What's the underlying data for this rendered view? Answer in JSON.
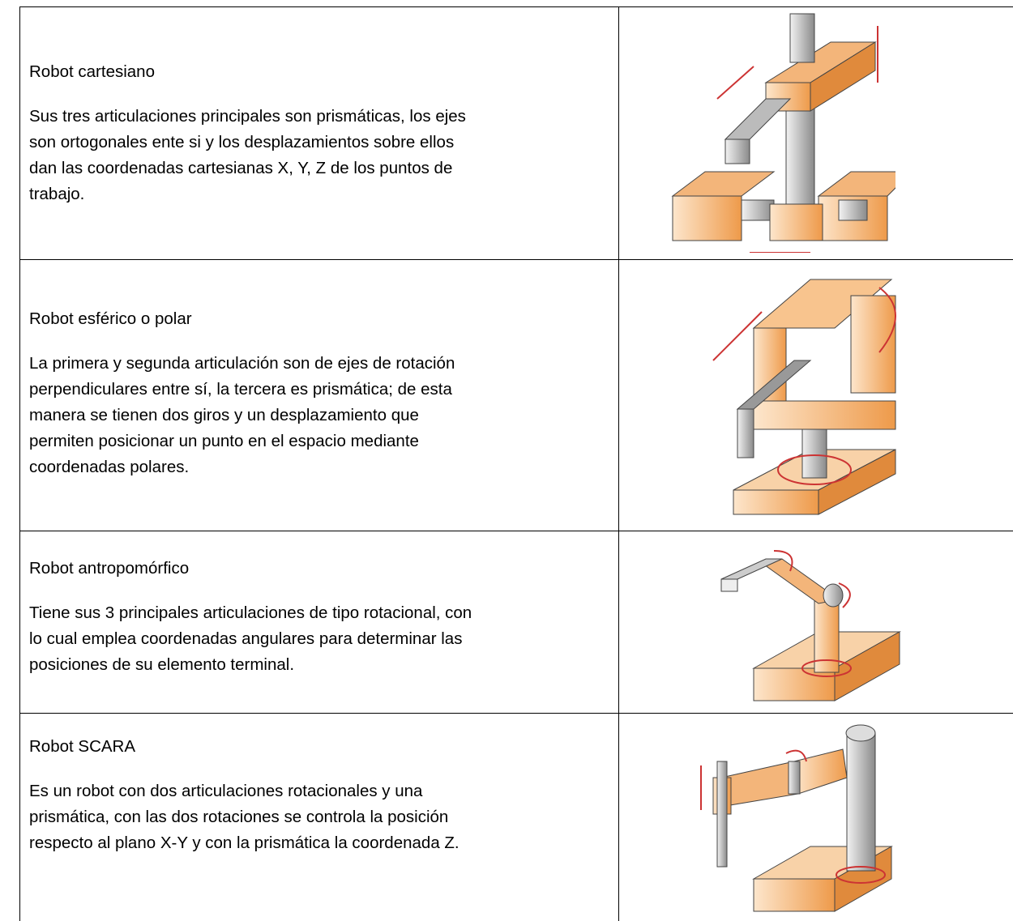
{
  "table": {
    "rows": [
      {
        "title": "Robot cartesiano",
        "lines": [
          "Sus tres articulaciones principales son prismáticas, los ejes",
          "son ortogonales ente si y los desplazamientos sobre ellos",
          "dan las coordenadas cartesianas X, Y, Z de los puntos de",
          "trabajo."
        ]
      },
      {
        "title": "Robot esférico o polar",
        "lines": [
          "La primera y segunda articulación son de ejes de rotación",
          "perpendiculares entre sí, la tercera es prismática; de esta",
          "manera se tienen dos giros y un desplazamiento que",
          "permiten posicionar un punto en el espacio mediante",
          "coordenadas polares."
        ]
      },
      {
        "title": "Robot antropomórfico",
        "lines": [
          "Tiene sus 3 principales articulaciones de tipo rotacional, con",
          "lo cual emplea coordenadas angulares para determinar las",
          "posiciones de su elemento terminal."
        ]
      },
      {
        "title": "Robot SCARA",
        "lines": [
          "Es un robot con dos articulaciones rotacionales y una",
          "prismática, con las dos rotaciones se controla la posición",
          "respecto al plano X-Y y con la prismática la coordenada Z."
        ]
      }
    ]
  }
}
